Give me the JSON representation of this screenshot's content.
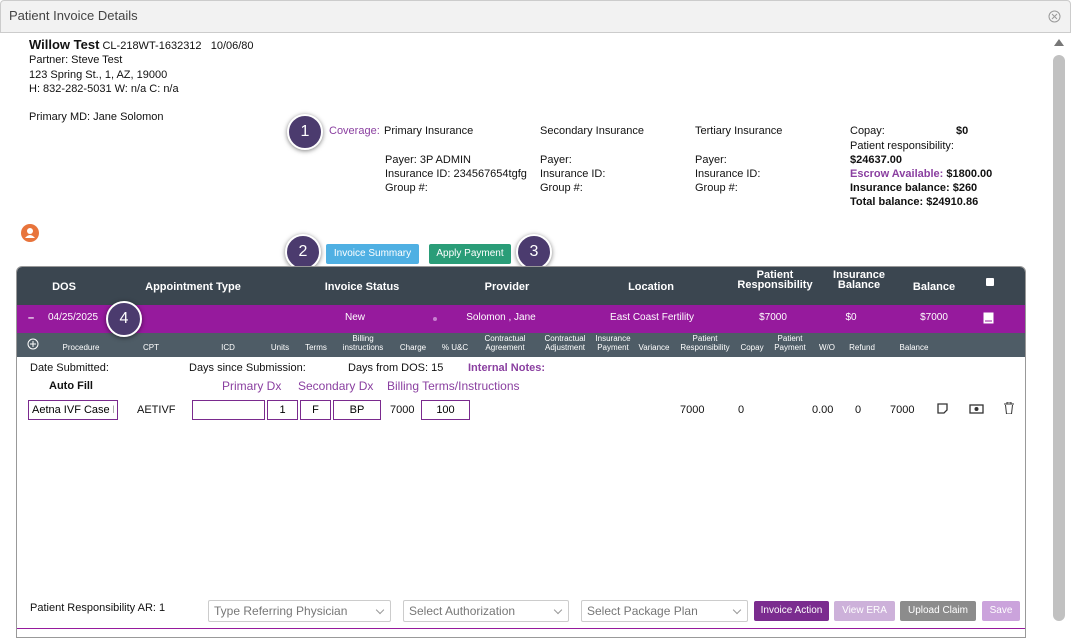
{
  "header": {
    "title": "Patient Invoice Details"
  },
  "patient": {
    "name": "Willow Test",
    "id": "CL-218WT-1632312",
    "dob": "10/06/80",
    "partner": "Partner: Steve  Test",
    "address": "123 Spring St., 1, AZ, 19000",
    "phones": "H: 832-282-5031 W: n/a C: n/a",
    "primary_md": "Primary MD: Jane Solomon"
  },
  "callouts": [
    "1",
    "2",
    "3",
    "4"
  ],
  "coverage": {
    "label": "Coverage:",
    "plans": [
      {
        "title": "Primary Insurance",
        "payer": "Payer: 3P ADMIN",
        "insurance_id": "Insurance ID: 234567654tgfg",
        "group": "Group #:"
      },
      {
        "title": "Secondary Insurance",
        "payer": "Payer:",
        "insurance_id": "Insurance ID:",
        "group": "Group #:"
      },
      {
        "title": "Tertiary Insurance",
        "payer": "Payer:",
        "insurance_id": "Insurance ID:",
        "group": "Group #:"
      }
    ]
  },
  "summary": {
    "copay_label": "Copay:",
    "copay": "$0",
    "patient_resp_label": "Patient responsibility:",
    "patient_resp": "$24637.00",
    "escrow_label": "Escrow Available:",
    "escrow": "$1800.00",
    "insurance_balance": "Insurance balance: $260",
    "total_balance": "Total balance: $24910.86"
  },
  "buttons": {
    "invoice_summary": "Invoice Summary",
    "apply_payment": "Apply Payment"
  },
  "table": {
    "columns": [
      "DOS",
      "Appointment Type",
      "Invoice Status",
      "Provider",
      "Location",
      "Patient Responsibility",
      "Insurance Balance",
      "Balance"
    ],
    "row": {
      "toggle": "–",
      "dos": "04/25/2025",
      "status": "New",
      "provider": "Solomon , Jane",
      "location": "East Coast Fertility",
      "patient_responsibility": "$7000",
      "insurance_balance": "$0",
      "balance": "$7000"
    },
    "sub_columns": [
      "Procedure",
      "CPT",
      "ICD",
      "Units",
      "Terms",
      "Billing instructions",
      "Charge",
      "% U&C",
      "Contractual Agreement",
      "Contractual Adjustment",
      "Insurance Payment",
      "Variance",
      "Patient Responsibility",
      "Copay",
      "Patient Payment",
      "W/O",
      "Refund",
      "Balance"
    ],
    "info": {
      "date_submitted": "Date Submitted:",
      "days_since": "Days since Submission:",
      "days_from_dos": "Days from DOS: 15",
      "internal_notes": "Internal Notes:"
    },
    "auto_fill": "Auto Fill",
    "primary_dx": "Primary Dx",
    "secondary_dx": "Secondary Dx",
    "billing_terms": "Billing Terms/Instructions",
    "line": {
      "procedure": "Aetna IVF Case Ra",
      "cpt": "AETIVF",
      "units": "1",
      "terms": "F",
      "billing": "BP",
      "charge": "7000",
      "uc": "100",
      "patient_responsibility": "7000",
      "copay": "0",
      "wo": "0.00",
      "refund": "0",
      "balance": "7000"
    }
  },
  "footer": {
    "ar": "Patient Responsibility AR: 1",
    "referring": "Type Referring Physician",
    "authorization": "Select Authorization",
    "package": "Select Package Plan",
    "invoice_action": "Invoice Action",
    "view_era": "View ERA",
    "upload_claim": "Upload Claim",
    "save": "Save"
  }
}
